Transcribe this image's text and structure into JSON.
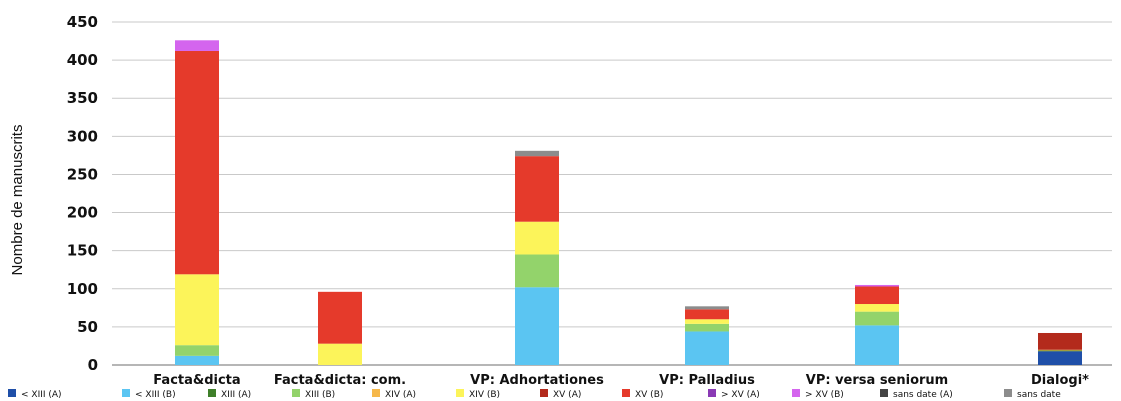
{
  "chart_data": {
    "type": "bar",
    "stacked": true,
    "title": "",
    "xlabel": "",
    "ylabel": "Nombre de manuscrits",
    "ylim": [
      0,
      450
    ],
    "yticks": [
      "0",
      "50",
      "100",
      "150",
      "200",
      "250",
      "300",
      "350",
      "400",
      "450"
    ],
    "grid": true,
    "legend_position": "bottom",
    "categories": [
      "Facta&dicta",
      "Facta&dicta: com.",
      "VP: Adhortationes",
      "VP: Palladius",
      "VP: versa seniorum",
      "Dialogi*"
    ],
    "series": [
      {
        "name": "< XIII (A)",
        "color": "#1f4fa8",
        "values": [
          0,
          0,
          0,
          0,
          0,
          18
        ]
      },
      {
        "name": "< XIII (B)",
        "color": "#5bc5f2",
        "values": [
          12,
          0,
          102,
          44,
          52,
          0
        ]
      },
      {
        "name": "XIII (A)",
        "color": "#3f7f2a",
        "values": [
          0,
          0,
          0,
          0,
          0,
          1
        ]
      },
      {
        "name": "XIII (B)",
        "color": "#93d36b",
        "values": [
          14,
          0,
          43,
          10,
          18,
          0
        ]
      },
      {
        "name": "XIV (A)",
        "color": "#f6b84a",
        "values": [
          0,
          0,
          0,
          0,
          0,
          1
        ]
      },
      {
        "name": "XIV (B)",
        "color": "#fcf45a",
        "values": [
          93,
          28,
          43,
          6,
          10,
          0
        ]
      },
      {
        "name": "XV (A)",
        "color": "#b32a1c",
        "values": [
          0,
          0,
          0,
          0,
          0,
          22
        ]
      },
      {
        "name": "XV (B)",
        "color": "#e53a2b",
        "values": [
          293,
          68,
          86,
          13,
          23,
          0
        ]
      },
      {
        "name": "> XV (A)",
        "color": "#8a3ab5",
        "values": [
          0,
          0,
          0,
          0,
          0,
          0
        ]
      },
      {
        "name": "> XV (B)",
        "color": "#d465ee",
        "values": [
          14,
          0,
          0,
          0,
          2,
          0
        ]
      },
      {
        "name": "sans date (A)",
        "color": "#444444",
        "values": [
          0,
          0,
          0,
          0,
          0,
          0
        ]
      },
      {
        "name": "sans date",
        "color": "#8c8c8c",
        "values": [
          0,
          0,
          7,
          4,
          0,
          0
        ]
      }
    ]
  }
}
